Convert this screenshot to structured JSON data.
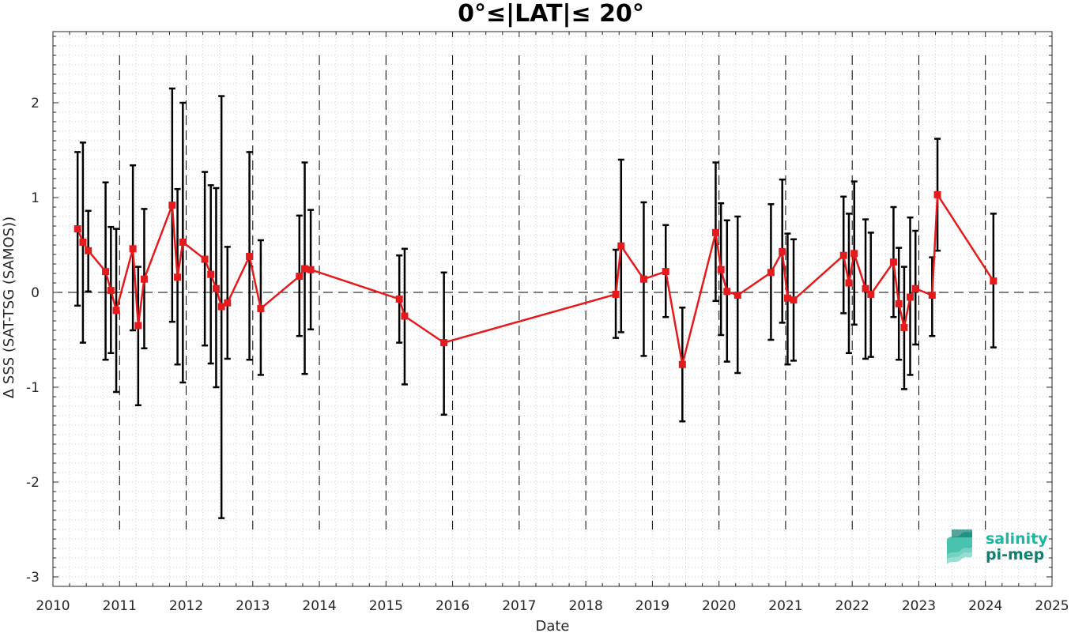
{
  "chart_data": {
    "type": "line",
    "title": "0°≤|LAT|≤ 20°",
    "xlabel": "Date",
    "ylabel": "Δ SSS (SAT-TSG (SAMOS))",
    "xlim": [
      2010,
      2025
    ],
    "ylim": [
      -3.1,
      2.75
    ],
    "xticks": [
      "2010",
      "2011",
      "2012",
      "2013",
      "2014",
      "2015",
      "2016",
      "2017",
      "2018",
      "2019",
      "2020",
      "2021",
      "2022",
      "2023",
      "2024",
      "2025"
    ],
    "yticks": [
      "-3",
      "-2",
      "-1",
      "0",
      "1",
      "2"
    ],
    "grid": true,
    "zero_line": 0,
    "year_dividers": [
      2011,
      2012,
      2013,
      2014,
      2015,
      2016,
      2017,
      2018,
      2019,
      2020,
      2021,
      2022,
      2023,
      2024
    ],
    "series": [
      {
        "color": "#e41a1c",
        "error_color": "#000000",
        "x": [
          2010.37,
          2010.45,
          2010.53,
          2010.79,
          2010.87,
          2010.95,
          2011.2,
          2011.28,
          2011.37,
          2011.79,
          2011.87,
          2011.95,
          2012.28,
          2012.37,
          2012.45,
          2012.53,
          2012.62,
          2012.95,
          2013.12,
          2013.7,
          2013.78,
          2013.87,
          2015.2,
          2015.28,
          2015.87,
          2018.45,
          2018.53,
          2018.87,
          2019.2,
          2019.45,
          2019.95,
          2020.03,
          2020.12,
          2020.28,
          2020.78,
          2020.95,
          2021.03,
          2021.12,
          2021.87,
          2021.95,
          2022.03,
          2022.2,
          2022.28,
          2022.62,
          2022.7,
          2022.78,
          2022.87,
          2022.95,
          2023.2,
          2023.28,
          2024.12
        ],
        "y": [
          0.67,
          0.53,
          0.44,
          0.22,
          0.02,
          -0.19,
          0.46,
          -0.35,
          0.14,
          0.92,
          0.16,
          0.53,
          0.35,
          0.19,
          0.04,
          -0.15,
          -0.11,
          0.38,
          -0.17,
          0.17,
          0.25,
          0.24,
          -0.07,
          -0.25,
          -0.53,
          -0.02,
          0.49,
          0.14,
          0.22,
          -0.76,
          0.63,
          0.24,
          0.01,
          -0.03,
          0.21,
          0.43,
          -0.06,
          -0.08,
          0.39,
          0.1,
          0.41,
          0.04,
          -0.02,
          0.32,
          -0.12,
          -0.37,
          -0.05,
          0.04,
          -0.03,
          1.03,
          0.12
        ],
        "err_low": [
          -0.14,
          -0.53,
          0.01,
          -0.71,
          -0.64,
          -1.05,
          -0.4,
          -1.19,
          -0.59,
          -0.31,
          -0.76,
          -0.95,
          -0.56,
          -0.75,
          -1.0,
          -2.38,
          -0.7,
          -0.71,
          -0.87,
          -0.46,
          -0.86,
          -0.39,
          -0.53,
          -0.97,
          -1.29,
          -0.48,
          -0.42,
          -0.67,
          -0.26,
          -1.36,
          -0.09,
          -0.45,
          -0.73,
          -0.85,
          -0.5,
          -0.32,
          -0.76,
          -0.72,
          -0.22,
          -0.64,
          -0.34,
          -0.7,
          -0.68,
          -0.26,
          -0.71,
          -1.02,
          -0.87,
          -0.55,
          -0.46,
          0.44,
          -0.58
        ],
        "err_high": [
          1.48,
          1.58,
          0.86,
          1.16,
          0.69,
          0.67,
          1.34,
          0.27,
          0.88,
          2.15,
          1.09,
          2.0,
          1.27,
          1.13,
          1.1,
          2.07,
          0.48,
          1.48,
          0.55,
          0.81,
          1.37,
          0.87,
          0.39,
          0.46,
          0.21,
          0.45,
          1.4,
          0.95,
          0.71,
          -0.16,
          1.37,
          0.94,
          0.76,
          0.8,
          0.93,
          1.19,
          0.62,
          0.56,
          1.01,
          0.83,
          1.17,
          0.77,
          0.63,
          0.9,
          0.47,
          0.27,
          0.79,
          0.65,
          0.37,
          1.62,
          0.83
        ]
      }
    ]
  },
  "logo": {
    "line1": "salinity",
    "line2": "pi-mep",
    "color1": "#1fb5a0",
    "color2": "#0f7f6f"
  }
}
